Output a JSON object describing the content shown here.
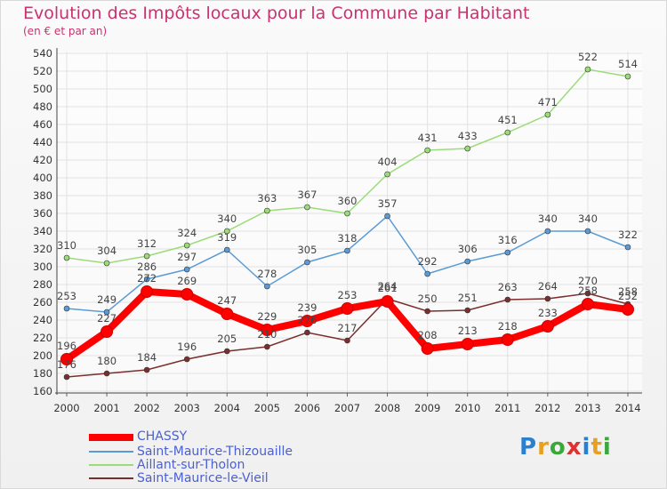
{
  "header": {
    "title": "Evolution des Impôts locaux pour la Commune par Habitant",
    "subtitle": "(en € et par an)"
  },
  "logo": {
    "text": "Proxiti",
    "colors": [
      "#2a7fd0",
      "#e8a020",
      "#3aa83a",
      "#e03030",
      "#2a7fd0",
      "#e8a020",
      "#3aa83a"
    ]
  },
  "chart_data": {
    "type": "line",
    "title": "Evolution des Impôts locaux pour la Commune par Habitant",
    "subtitle": "(en € et par an)",
    "xlabel": "",
    "ylabel": "",
    "categories": [
      "2000",
      "2001",
      "2002",
      "2003",
      "2004",
      "2005",
      "2006",
      "2007",
      "2008",
      "2009",
      "2010",
      "2011",
      "2012",
      "2013",
      "2014"
    ],
    "ylim": [
      160,
      540
    ],
    "yticks": [
      160,
      180,
      200,
      220,
      240,
      260,
      280,
      300,
      320,
      340,
      360,
      380,
      400,
      420,
      440,
      460,
      480,
      500,
      520,
      540
    ],
    "grid": true,
    "legend_position": "bottom-left",
    "series": [
      {
        "name": "CHASSY",
        "color": "#ff0000",
        "emphasis": true,
        "values": [
          196,
          227,
          272,
          269,
          247,
          229,
          239,
          253,
          261,
          208,
          213,
          218,
          233,
          258,
          252
        ]
      },
      {
        "name": "Saint-Maurice-Thizouaille",
        "color": "#5b9bd5",
        "values": [
          253,
          249,
          286,
          297,
          319,
          278,
          305,
          318,
          357,
          292,
          306,
          316,
          340,
          340,
          322
        ]
      },
      {
        "name": "Aillant-sur-Tholon",
        "color": "#9bdc78",
        "values": [
          310,
          304,
          312,
          324,
          340,
          363,
          367,
          360,
          404,
          431,
          433,
          451,
          471,
          522,
          514
        ]
      },
      {
        "name": "Saint-Maurice-le-Vieil",
        "color": "#7a2e2e",
        "values": [
          176,
          180,
          184,
          196,
          205,
          210,
          226,
          217,
          264,
          250,
          251,
          263,
          264,
          270,
          258
        ]
      }
    ],
    "data_labels": {
      "CHASSY": [
        "196",
        "227",
        "272",
        "269",
        "247",
        "229",
        "239",
        "253",
        "261",
        "208",
        "213",
        "218",
        "233",
        "258",
        "252"
      ],
      "Saint-Maurice-Thizouaille": [
        "253",
        "249",
        "286",
        "297",
        "319",
        "278",
        "305",
        "318",
        "357",
        "292",
        "306",
        "316",
        "340",
        "340",
        "322"
      ],
      "Aillant-sur-Tholon": [
        "310",
        "304",
        "312",
        "324",
        "340",
        "363",
        "367",
        "360",
        "404",
        "431",
        "433",
        "451",
        "471",
        "522",
        "514"
      ],
      "Saint-Maurice-le-Vieil": [
        "176",
        "180",
        "184",
        "196",
        "205",
        "210",
        "226",
        "217",
        "264",
        "250",
        "251",
        "263",
        "264",
        "270",
        "258"
      ]
    }
  }
}
